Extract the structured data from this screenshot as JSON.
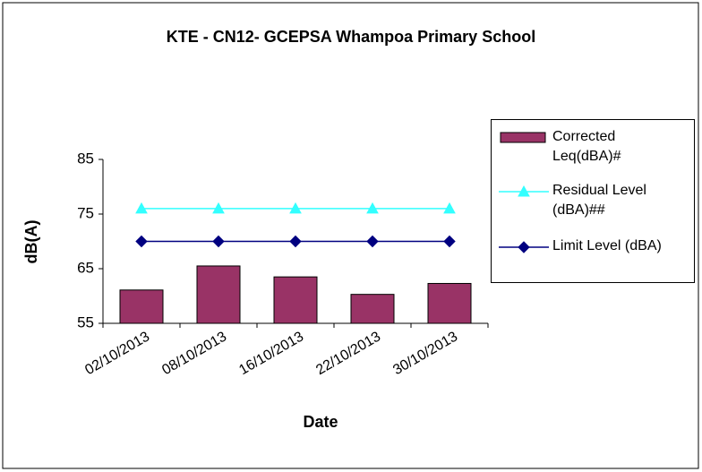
{
  "chart_data": {
    "type": "bar",
    "title": "KTE - CN12- GCEPSA Whampoa Primary School",
    "x_label": "Date",
    "y_label": "dB(A)",
    "categories": [
      "02/10/2013",
      "08/10/2013",
      "16/10/2013",
      "22/10/2013",
      "30/10/2013"
    ],
    "series": [
      {
        "name": "Corrected Leq(dBA)#",
        "type": "bar",
        "color": "#993366",
        "values": [
          61.1,
          65.5,
          63.5,
          60.3,
          62.3
        ]
      },
      {
        "name": "Residual Level (dBA)##",
        "type": "line",
        "marker": "triangle",
        "color": "#33ffff",
        "values": [
          76,
          76,
          76,
          76,
          76
        ]
      },
      {
        "name": "Limit Level (dBA)",
        "type": "line",
        "marker": "diamond",
        "color": "#000080",
        "values": [
          70,
          70,
          70,
          70,
          70
        ]
      }
    ],
    "ylim": [
      55,
      85
    ],
    "yticks": [
      55,
      65,
      75,
      85
    ],
    "grid": false,
    "legend": "right"
  }
}
